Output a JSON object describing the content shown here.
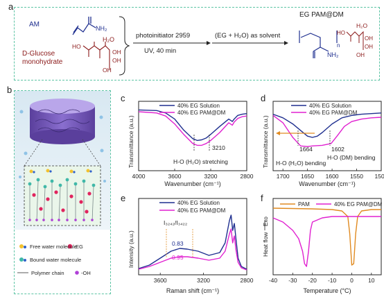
{
  "panel_a": {
    "letter": "a",
    "am_label": "AM",
    "nh2_label": "NH₂",
    "glucose_label_line1": "D-Glucose",
    "glucose_label_line2": "monohydrate",
    "h2o_label": "H₂O",
    "ho_label": "HO",
    "oh_label": "OH",
    "arrow1_top": "photoinitiator 2959",
    "arrow1_bottom": "UV, 40 min",
    "arrow2_top": "(EG + H₂O) as solvent",
    "product_title": "EG PAM@DM",
    "n_label": "n",
    "colors": {
      "am": "#1f2f8f",
      "glucose": "#8b1a1a",
      "product": "#222222"
    }
  },
  "panel_b": {
    "letter": "b",
    "legend": [
      {
        "label": "Free water molecule",
        "icon": "free-water-icon"
      },
      {
        "label": "EG",
        "icon": "eg-dot-icon"
      },
      {
        "label": "Bound water molecule",
        "icon": "bound-water-icon"
      },
      {
        "label": "Polymer chain",
        "icon": "polymer-chain-icon"
      },
      {
        "label": "-OH",
        "icon": "oh-dot-icon"
      }
    ]
  },
  "panel_c": {
    "letter": "c",
    "chart_data": {
      "type": "line",
      "xlabel": "Wavenumber (cm⁻¹)",
      "ylabel": "Transmittance (a.u.)",
      "xticks": [
        4000,
        3600,
        3200,
        2800
      ],
      "xlim": [
        4000,
        2800
      ],
      "series": [
        {
          "name": "40% EG Solution",
          "color": "#1f2f8f",
          "x": [
            4000,
            3800,
            3700,
            3600,
            3500,
            3400,
            3350,
            3300,
            3250,
            3200,
            3100,
            3000,
            2960,
            2940,
            2900,
            2850,
            2800
          ],
          "y": [
            0.95,
            0.94,
            0.9,
            0.8,
            0.62,
            0.48,
            0.45,
            0.46,
            0.49,
            0.55,
            0.68,
            0.8,
            0.76,
            0.8,
            0.86,
            0.88,
            0.89
          ]
        },
        {
          "name": "40% EG PAM@DM",
          "color": "#e020d0",
          "x": [
            4000,
            3800,
            3700,
            3600,
            3500,
            3400,
            3350,
            3300,
            3250,
            3200,
            3100,
            3000,
            2960,
            2940,
            2900,
            2850,
            2800
          ],
          "y": [
            0.92,
            0.9,
            0.85,
            0.72,
            0.55,
            0.4,
            0.37,
            0.37,
            0.4,
            0.45,
            0.58,
            0.74,
            0.7,
            0.75,
            0.81,
            0.84,
            0.85
          ]
        }
      ],
      "annotations": [
        "3210",
        "H-O (H₂O) stretching"
      ]
    }
  },
  "panel_d": {
    "letter": "d",
    "chart_data": {
      "type": "line",
      "xlabel": "Wavenumber (cm⁻¹)",
      "ylabel": "Transmittance (a.u.)",
      "xticks": [
        1700,
        1650,
        1600,
        1550,
        1500
      ],
      "xlim": [
        1720,
        1500
      ],
      "series": [
        {
          "name": "40% EG Solution",
          "color": "#1f2f8f",
          "x": [
            1720,
            1700,
            1680,
            1665,
            1650,
            1640,
            1630,
            1620,
            1600,
            1580,
            1560,
            1540,
            1520,
            1500
          ],
          "y": [
            0.88,
            0.82,
            0.72,
            0.62,
            0.52,
            0.5,
            0.52,
            0.58,
            0.72,
            0.82,
            0.86,
            0.88,
            0.89,
            0.9
          ]
        },
        {
          "name": "40% EG PAM@DM",
          "color": "#e020d0",
          "x": [
            1720,
            1700,
            1680,
            1664,
            1650,
            1640,
            1620,
            1602,
            1590,
            1575,
            1560,
            1540,
            1520,
            1500
          ],
          "y": [
            0.86,
            0.74,
            0.5,
            0.36,
            0.35,
            0.36,
            0.37,
            0.4,
            0.52,
            0.68,
            0.76,
            0.8,
            0.82,
            0.83
          ]
        }
      ],
      "annotations": [
        "1664",
        "1602",
        "H-O (H₂O) bending",
        "H-O (DM) bending"
      ]
    }
  },
  "panel_e": {
    "letter": "e",
    "chart_data": {
      "type": "line",
      "xlabel": "Raman shift (cm⁻¹)",
      "ylabel": "Intensity (a.u.)",
      "xticks": [
        3600,
        3200,
        2800
      ],
      "xlim": [
        3800,
        2800
      ],
      "series": [
        {
          "name": "40% EG Solution",
          "color": "#1f2f8f",
          "x": [
            3800,
            3700,
            3600,
            3500,
            3420,
            3350,
            3250,
            3150,
            3050,
            3000,
            2960,
            2945,
            2930,
            2915,
            2900,
            2880,
            2850,
            2800
          ],
          "y": [
            0.05,
            0.1,
            0.2,
            0.3,
            0.34,
            0.33,
            0.3,
            0.24,
            0.28,
            0.42,
            0.74,
            0.82,
            0.6,
            0.7,
            0.48,
            0.2,
            0.08,
            0.04
          ]
        },
        {
          "name": "40% EG PAM@DM",
          "color": "#e020d0",
          "x": [
            3800,
            3700,
            3600,
            3500,
            3420,
            3350,
            3250,
            3150,
            3050,
            3000,
            2960,
            2945,
            2930,
            2915,
            2900,
            2880,
            2850,
            2800
          ],
          "y": [
            0.04,
            0.08,
            0.14,
            0.2,
            0.22,
            0.22,
            0.2,
            0.17,
            0.2,
            0.3,
            0.55,
            0.62,
            0.42,
            0.52,
            0.32,
            0.14,
            0.06,
            0.03
          ]
        }
      ],
      "annotations": [
        "I₃₂₄₂/I₃₄₂₂",
        "0.83",
        "0.95"
      ]
    }
  },
  "panel_f": {
    "letter": "f",
    "chart_data": {
      "type": "line",
      "xlabel": "Temperature (°C)",
      "ylabel": "Heat flow",
      "exo_label": "Exo",
      "xticks": [
        -40,
        -30,
        -20,
        -10,
        0,
        10
      ],
      "xlim": [
        -40,
        15
      ],
      "series": [
        {
          "name": "PAM",
          "color": "#e08a20",
          "x": [
            -40,
            -20,
            -10,
            -5,
            -2,
            -1,
            0,
            1,
            2,
            3,
            5,
            10,
            15
          ],
          "y": [
            0.92,
            0.91,
            0.9,
            0.88,
            0.8,
            0.55,
            0.1,
            0.12,
            0.55,
            0.8,
            0.88,
            0.9,
            0.9
          ]
        },
        {
          "name": "40% EG PAM@DM",
          "color": "#e020d0",
          "x": [
            -40,
            -35,
            -30,
            -27,
            -25,
            -24,
            -23,
            -22,
            -21,
            -20,
            -15,
            -10,
            0,
            10,
            15
          ],
          "y": [
            0.78,
            0.72,
            0.6,
            0.48,
            0.3,
            0.12,
            0.08,
            0.3,
            0.6,
            0.72,
            0.78,
            0.8,
            0.8,
            0.8,
            0.8
          ]
        }
      ]
    }
  }
}
